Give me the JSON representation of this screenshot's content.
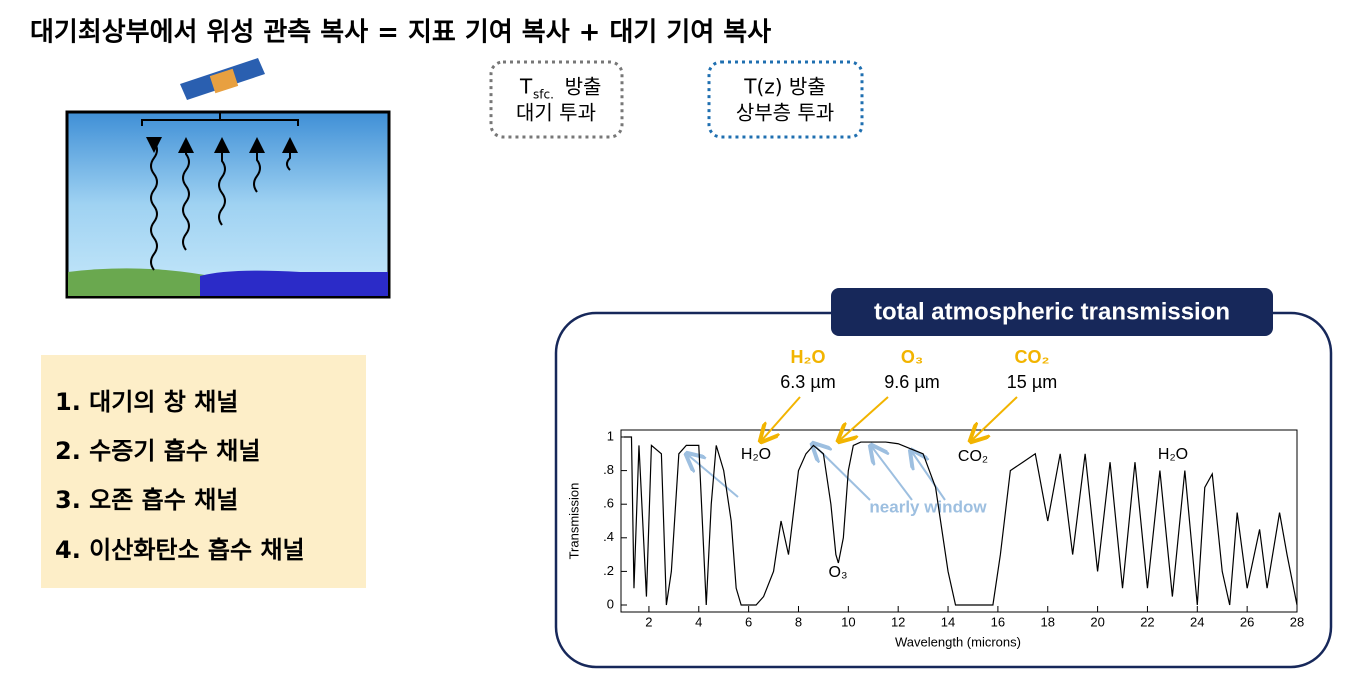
{
  "header": {
    "title": "대기최상부에서 위성 관측 복사 = 지표 기여 복사 +  대기 기여 복사"
  },
  "boxes": [
    {
      "symbol": "T",
      "subscript": "sfc.",
      "emission": "방출",
      "transmission": "대기 투과"
    },
    {
      "emission": "T(z) 방출",
      "transmission": "상부층 투과"
    }
  ],
  "channels": [
    "1. 대기의 창 채널",
    "2. 수증기 흡수 채널",
    "3. 오존 흡수 채널",
    "4. 이산화탄소 흡수 채널"
  ],
  "chart_data": {
    "type": "line",
    "title": "total atmospheric transmission",
    "x_label": "Wavelength (microns)",
    "y_label": "Transmission",
    "absorbers": [
      {
        "name": "H₂O",
        "band": "6.3 µm"
      },
      {
        "name": "O₃",
        "band": "9.6 µm"
      },
      {
        "name": "CO₂",
        "band": "15 µm"
      }
    ],
    "annotations": [
      "H₂O",
      "O₃",
      "CO₂",
      "H₂O",
      "nearly window"
    ],
    "x": [
      1,
      1.3,
      1.4,
      1.6,
      1.9,
      2.1,
      2.5,
      2.7,
      2.9,
      3.2,
      3.5,
      4.0,
      4.3,
      4.5,
      4.7,
      5.0,
      5.3,
      5.5,
      5.7,
      6.0,
      6.3,
      6.6,
      7.0,
      7.3,
      7.6,
      8.0,
      8.3,
      8.6,
      9.0,
      9.3,
      9.5,
      9.6,
      9.8,
      10.0,
      10.2,
      10.5,
      11,
      11.5,
      12,
      12.5,
      13,
      13.5,
      14,
      14.3,
      15,
      15.8,
      16.1,
      16.5,
      17,
      17.5,
      18,
      18.5,
      19,
      19.5,
      20,
      20.5,
      21,
      21.5,
      22,
      22.5,
      23,
      23.5,
      24,
      24.3,
      24.6,
      25,
      25.3,
      25.6,
      26,
      26.5,
      26.8,
      27.3,
      27.6,
      28
    ],
    "values": [
      1,
      1,
      0.1,
      0.95,
      0.05,
      0.95,
      0.9,
      0,
      0.2,
      0.9,
      0.95,
      0.95,
      0,
      0.6,
      0.95,
      0.8,
      0.5,
      0.1,
      0,
      0,
      0,
      0.05,
      0.2,
      0.5,
      0.3,
      0.8,
      0.9,
      0.95,
      0.9,
      0.6,
      0.3,
      0.25,
      0.4,
      0.8,
      0.95,
      0.97,
      0.97,
      0.97,
      0.96,
      0.93,
      0.9,
      0.7,
      0.2,
      0,
      0,
      0,
      0.3,
      0.8,
      0.85,
      0.9,
      0.5,
      0.9,
      0.3,
      0.9,
      0.2,
      0.85,
      0.1,
      0.85,
      0.1,
      0.8,
      0.05,
      0.8,
      0,
      0.7,
      0.78,
      0.2,
      0,
      0.55,
      0.1,
      0.45,
      0.1,
      0.55,
      0.3,
      0
    ],
    "color": "#000000",
    "xlim": [
      1,
      28
    ],
    "ylim": [
      0,
      1
    ],
    "xticks": [
      2,
      4,
      6,
      8,
      10,
      12,
      14,
      16,
      18,
      20,
      22,
      24,
      26,
      28
    ],
    "yticks": [
      0,
      {
        "value": 0.2,
        "label": ".2"
      },
      {
        "value": 0.4,
        "label": ".4"
      },
      {
        "value": 0.6,
        "label": ".6"
      },
      {
        "value": 0.8,
        "label": ".8"
      },
      1
    ]
  }
}
